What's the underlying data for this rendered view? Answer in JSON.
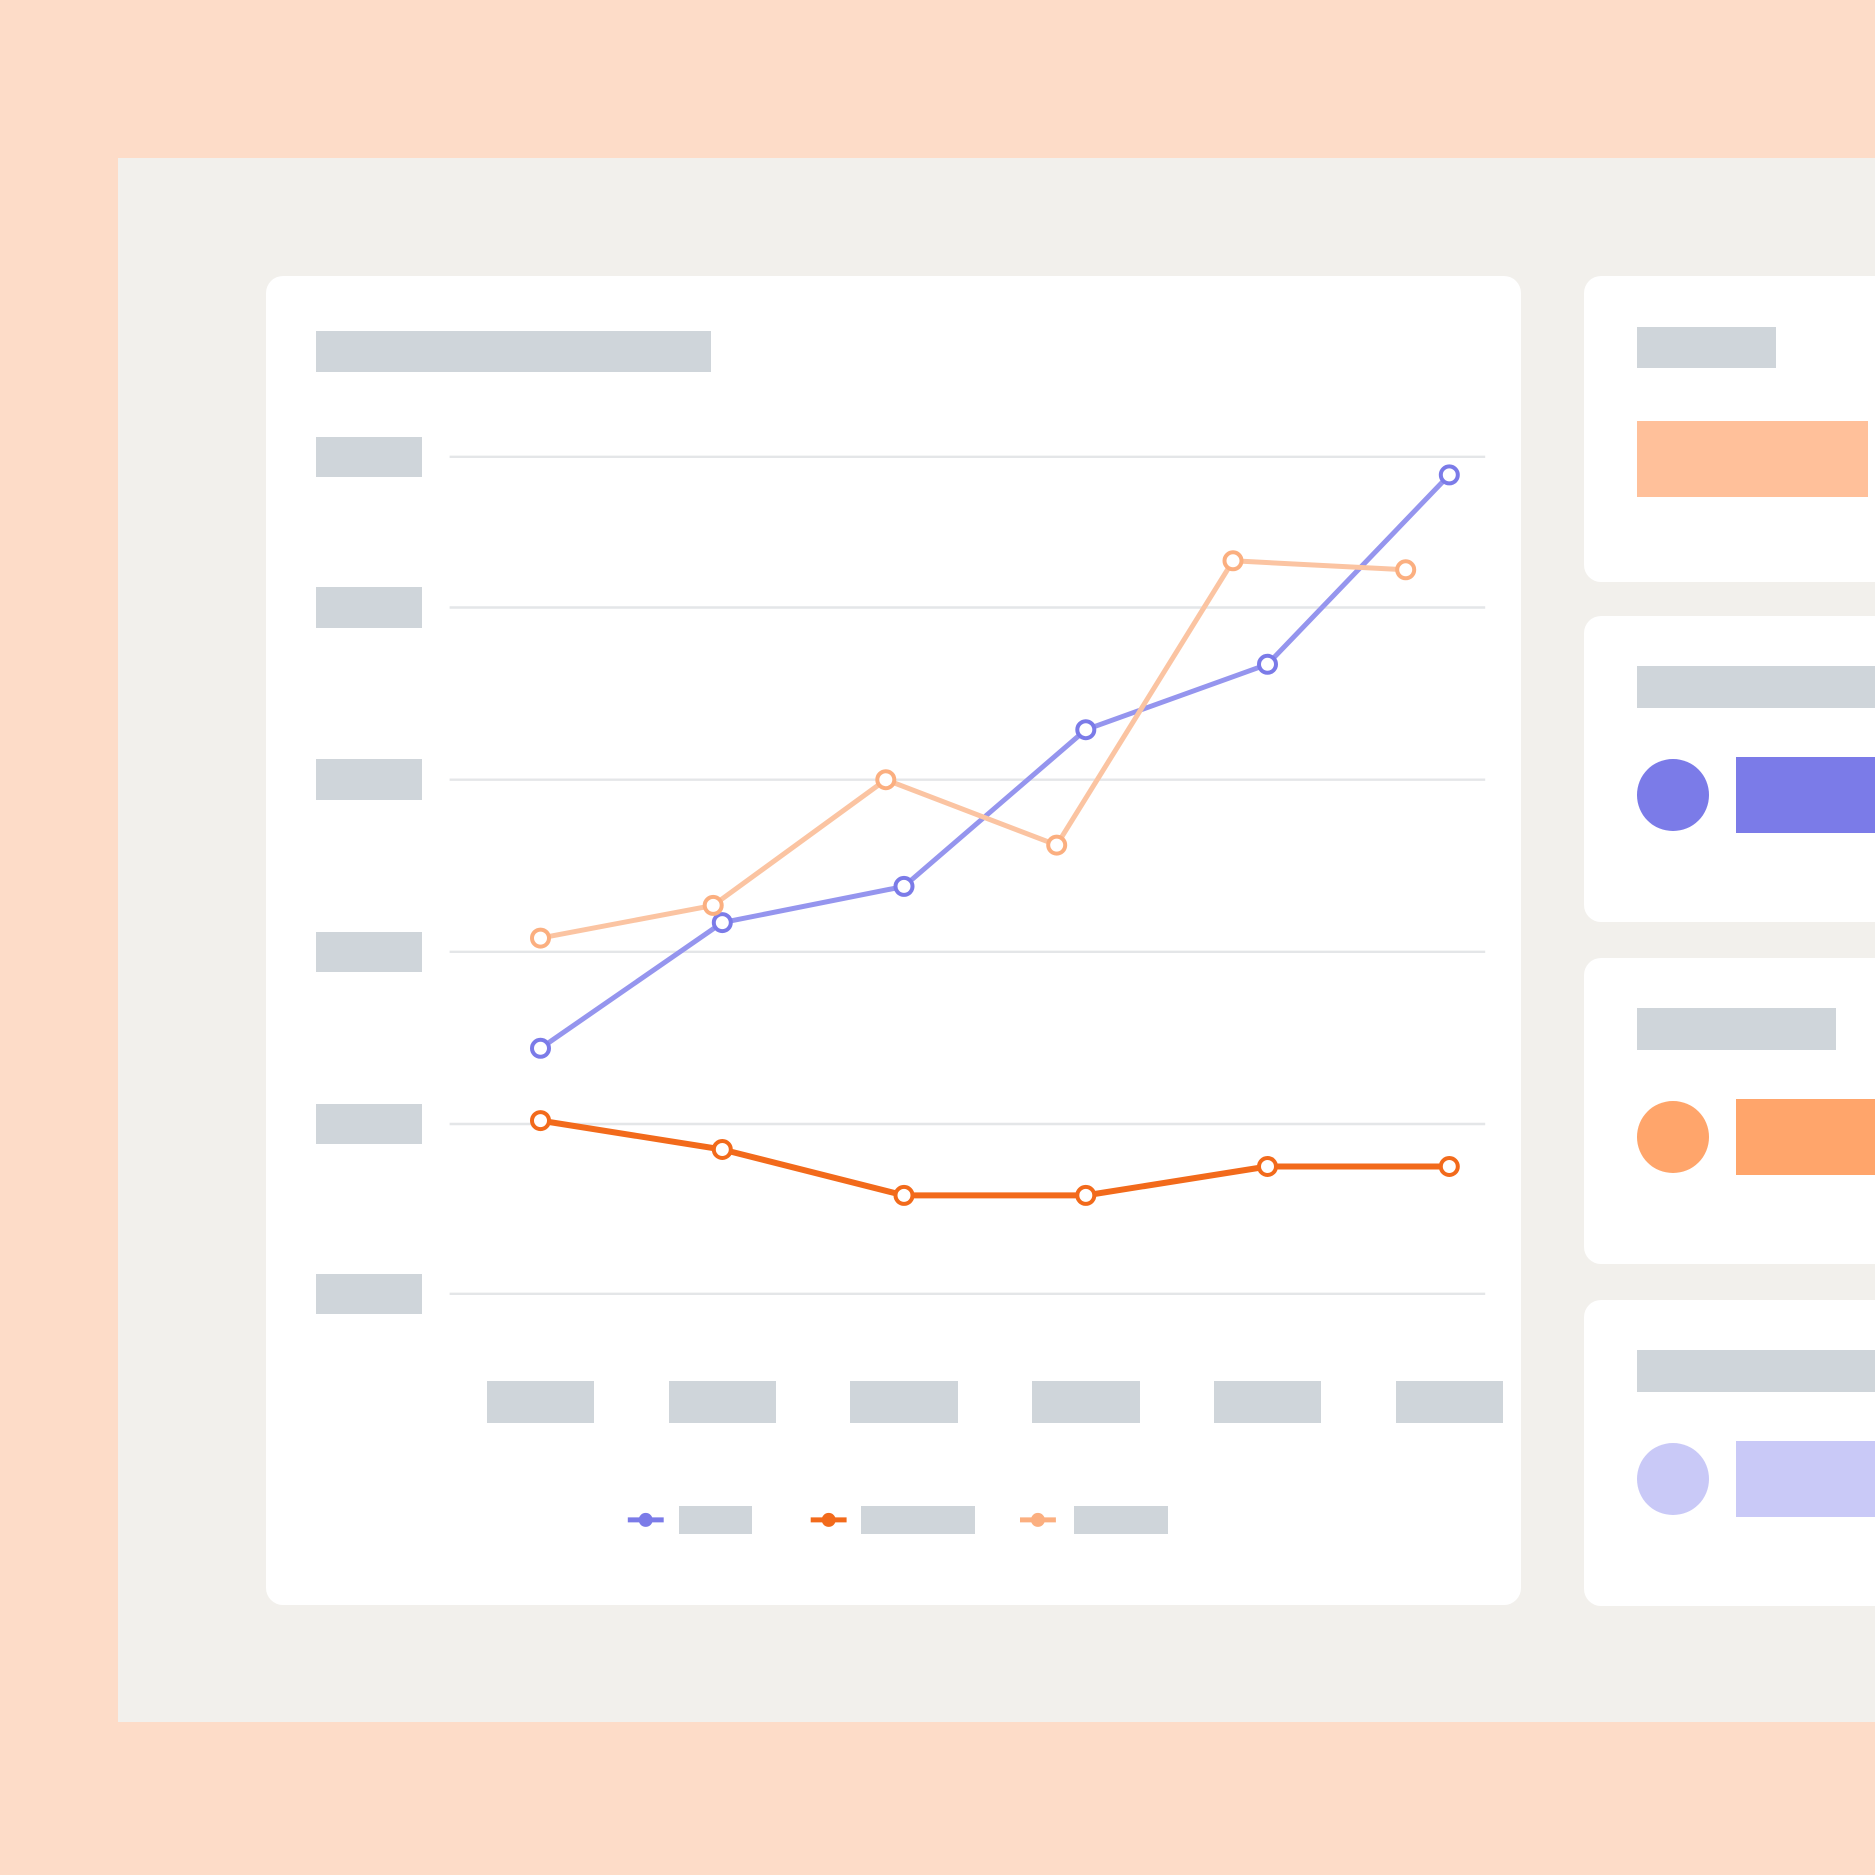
{
  "colors": {
    "background": "#FDDCC8",
    "panel": "#F2F0EC",
    "card": "#FFFFFF",
    "placeholder": "#CFD5DA",
    "gridline": "#E4E6E8"
  },
  "chart_data": {
    "type": "line",
    "title": "",
    "xlabel": "",
    "ylabel": "",
    "categories": [
      "",
      "",
      "",
      "",
      "",
      ""
    ],
    "ylim": [
      0,
      5
    ],
    "grid": true,
    "legend_placement": "bottom",
    "series": [
      {
        "color": "#7B7BE8",
        "line_color": "#9595EE",
        "values": [
          1.44,
          2.17,
          2.38,
          3.29,
          3.67,
          4.88
        ],
        "x": [
          0,
          1,
          2,
          3,
          4,
          5
        ]
      },
      {
        "color": "#F26A1B",
        "line_color": "#F26A1B",
        "values": [
          1.02,
          0.85,
          0.58,
          0.58,
          0.75,
          0.75
        ],
        "x": [
          0,
          1,
          2,
          3,
          4,
          5
        ]
      },
      {
        "color": "#FBAF80",
        "line_color": "#FBC4A2",
        "values": [
          2.08,
          2.27,
          3.0,
          2.62,
          4.31,
          4.25
        ],
        "x": [
          0,
          0.95,
          1.9,
          2.84,
          3.81,
          4.76
        ]
      }
    ]
  },
  "side_cards": [
    {
      "accent": "#FFC09A",
      "has_dot": false
    },
    {
      "accent": "#7B7BE8",
      "has_dot": true
    },
    {
      "accent": "#FFA56B",
      "has_dot": true
    },
    {
      "accent": "#C9C9F7",
      "has_dot": true
    }
  ]
}
